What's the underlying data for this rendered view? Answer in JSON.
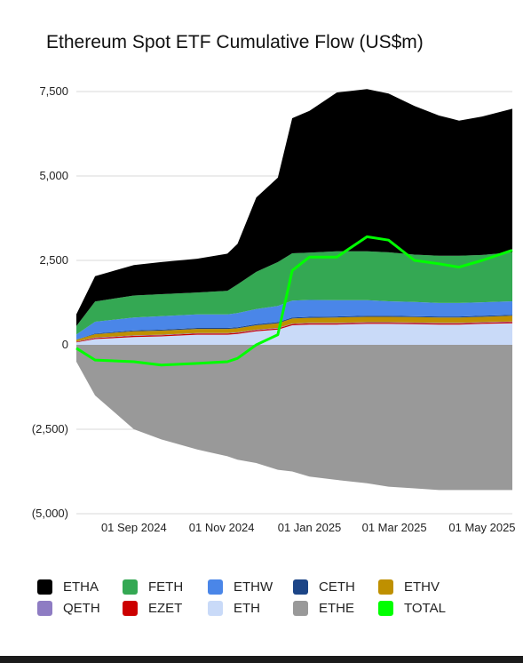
{
  "chart_data": {
    "type": "area",
    "title": "Ethereum Spot ETF Cumulative Flow (US$m)",
    "xlabel": "",
    "ylabel": "",
    "stacked": true,
    "ylim": [
      -5000,
      7500
    ],
    "yticks": [
      7500,
      5000,
      2500,
      0,
      -2500,
      -5000
    ],
    "ytick_labels": [
      "7,500",
      "5,000",
      "2,500",
      "0",
      "(2,500)",
      "(5,000)"
    ],
    "xlim": [
      "2024-07-23",
      "2025-05-22"
    ],
    "xtick_dates": [
      "2024-09-01",
      "2024-11-01",
      "2025-01-01",
      "2025-03-01",
      "2025-05-01"
    ],
    "xtick_labels": [
      "01 Sep 2024",
      "01 Nov 2024",
      "01 Jan 2025",
      "01 Mar 2025",
      "01 May 2025"
    ],
    "grid": true,
    "legend_position": "bottom",
    "x": [
      "2024-07-23",
      "2024-08-05",
      "2024-09-01",
      "2024-09-20",
      "2024-10-15",
      "2024-11-05",
      "2024-11-12",
      "2024-11-25",
      "2024-12-10",
      "2024-12-20",
      "2025-01-01",
      "2025-01-20",
      "2025-02-10",
      "2025-02-25",
      "2025-03-15",
      "2025-04-01",
      "2025-04-15",
      "2025-05-01",
      "2025-05-22"
    ],
    "series": [
      {
        "name": "ETHE",
        "color": "#999999",
        "values": [
          -500,
          -1500,
          -2500,
          -2800,
          -3100,
          -3300,
          -3400,
          -3500,
          -3700,
          -3750,
          -3900,
          -4000,
          -4100,
          -4200,
          -4250,
          -4300,
          -4300,
          -4300,
          -4300
        ]
      },
      {
        "name": "ETH",
        "color": "#c9daf8",
        "values": [
          70,
          170,
          230,
          250,
          300,
          300,
          320,
          400,
          450,
          580,
          600,
          600,
          620,
          620,
          610,
          600,
          600,
          620,
          640
        ]
      },
      {
        "name": "EZET",
        "color": "#cc0000",
        "values": [
          20,
          30,
          35,
          35,
          35,
          35,
          35,
          35,
          35,
          35,
          35,
          35,
          35,
          35,
          35,
          35,
          35,
          35,
          35
        ]
      },
      {
        "name": "QETH",
        "color": "#8e7cc3",
        "values": [
          10,
          15,
          15,
          15,
          15,
          15,
          15,
          15,
          15,
          15,
          15,
          15,
          15,
          15,
          15,
          15,
          15,
          15,
          15
        ]
      },
      {
        "name": "ETHV",
        "color": "#bf9000",
        "values": [
          50,
          100,
          120,
          120,
          120,
          120,
          120,
          130,
          140,
          150,
          150,
          160,
          160,
          160,
          160,
          160,
          160,
          160,
          170
        ]
      },
      {
        "name": "CETH",
        "color": "#1c4587",
        "values": [
          5,
          20,
          30,
          30,
          30,
          30,
          30,
          30,
          30,
          30,
          30,
          30,
          30,
          30,
          30,
          30,
          30,
          30,
          30
        ]
      },
      {
        "name": "ETHW",
        "color": "#4a86e8",
        "values": [
          150,
          350,
          380,
          400,
          400,
          400,
          420,
          450,
          480,
          500,
          500,
          480,
          460,
          430,
          420,
          400,
          400,
          400,
          400
        ]
      },
      {
        "name": "FETH",
        "color": "#34a853",
        "values": [
          250,
          600,
          650,
          650,
          650,
          700,
          850,
          1100,
          1300,
          1400,
          1400,
          1450,
          1450,
          1450,
          1400,
          1400,
          1400,
          1400,
          1450
        ]
      },
      {
        "name": "ETHA",
        "color": "#000000",
        "values": [
          350,
          750,
          900,
          950,
          1000,
          1100,
          1200,
          2200,
          2500,
          4000,
          4200,
          4700,
          4800,
          4700,
          4400,
          4150,
          4000,
          4100,
          4250
        ]
      },
      {
        "name": "TOTAL",
        "color": "#00ff00",
        "type": "line",
        "values": [
          -100,
          -450,
          -500,
          -600,
          -550,
          -500,
          -400,
          0,
          300,
          2200,
          2600,
          2600,
          3200,
          3100,
          2500,
          2400,
          2300,
          2500,
          2800
        ]
      }
    ]
  },
  "legend": [
    {
      "label": "ETHA",
      "color": "#000000"
    },
    {
      "label": "FETH",
      "color": "#34a853"
    },
    {
      "label": "ETHW",
      "color": "#4a86e8"
    },
    {
      "label": "CETH",
      "color": "#1c4587"
    },
    {
      "label": "ETHV",
      "color": "#bf9000"
    },
    {
      "label": "QETH",
      "color": "#8e7cc3"
    },
    {
      "label": "EZET",
      "color": "#cc0000"
    },
    {
      "label": "ETH",
      "color": "#c9daf8"
    },
    {
      "label": "ETHE",
      "color": "#999999"
    },
    {
      "label": "TOTAL",
      "color": "#00ff00"
    }
  ]
}
